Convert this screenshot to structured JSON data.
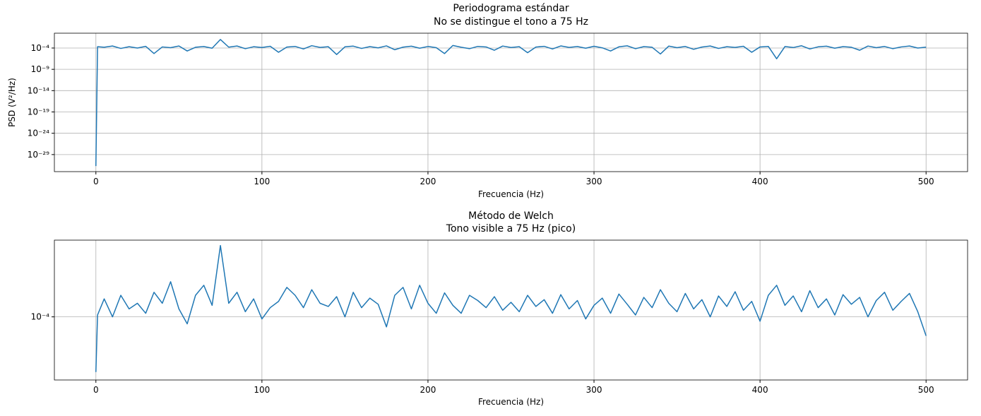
{
  "chart_data": [
    {
      "type": "line",
      "title": "Periodograma estándar",
      "subtitle": "No se distingue el tono a 75 Hz",
      "xlabel": "Frecuencia (Hz)",
      "ylabel": "PSD (V²/Hz)",
      "yscale": "log",
      "grid": true,
      "color": "#1f77b4",
      "xlim": [
        -25,
        525
      ],
      "xticks": [
        0,
        100,
        200,
        300,
        400,
        500
      ],
      "ylim": [
        1e-33,
        0.3
      ],
      "yticks": [
        {
          "value": 0.0001,
          "label": "10⁻⁴"
        },
        {
          "value": 1e-09,
          "label": "10⁻⁹"
        },
        {
          "value": 1e-14,
          "label": "10⁻¹⁴"
        },
        {
          "value": 1e-19,
          "label": "10⁻¹⁹"
        },
        {
          "value": 1e-24,
          "label": "10⁻²⁴"
        },
        {
          "value": 1e-29,
          "label": "10⁻²⁹"
        }
      ],
      "x": [
        0,
        1,
        5,
        10,
        15,
        20,
        25,
        30,
        35,
        40,
        45,
        50,
        55,
        60,
        65,
        70,
        75,
        80,
        85,
        90,
        95,
        100,
        105,
        110,
        115,
        120,
        125,
        130,
        135,
        140,
        145,
        150,
        155,
        160,
        165,
        170,
        175,
        180,
        185,
        190,
        195,
        200,
        205,
        210,
        215,
        220,
        225,
        230,
        235,
        240,
        245,
        250,
        255,
        260,
        265,
        270,
        275,
        280,
        285,
        290,
        295,
        300,
        305,
        310,
        315,
        320,
        325,
        330,
        335,
        340,
        345,
        350,
        355,
        360,
        365,
        370,
        375,
        380,
        385,
        390,
        395,
        400,
        405,
        410,
        415,
        420,
        425,
        430,
        435,
        440,
        445,
        450,
        455,
        460,
        465,
        470,
        475,
        480,
        485,
        490,
        495,
        500
      ],
      "values": [
        2e-32,
        0.0002,
        0.00015,
        0.0003,
        8e-05,
        0.0002,
        0.0001,
        0.00025,
        5e-06,
        0.00018,
        0.00012,
        0.0003,
        2e-05,
        0.00015,
        0.00022,
        9e-05,
        0.01,
        0.00016,
        0.0003,
        7e-05,
        0.0002,
        0.00013,
        0.00026,
        1e-05,
        0.00017,
        0.00024,
        6e-05,
        0.00035,
        0.00014,
        0.0002,
        3e-06,
        0.00019,
        0.00028,
        8e-05,
        0.00021,
        0.00011,
        0.00032,
        4e-05,
        0.00016,
        0.00027,
        9e-05,
        0.00023,
        0.00012,
        5e-06,
        0.0004,
        0.00015,
        7e-05,
        0.00024,
        0.00018,
        3e-05,
        0.00029,
        0.00013,
        0.0002,
        8e-06,
        0.00017,
        0.00025,
        6e-05,
        0.00031,
        0.00014,
        0.00022,
        9e-05,
        0.00026,
        0.00011,
        2e-05,
        0.00019,
        0.00033,
        7e-05,
        0.00021,
        0.00015,
        4e-06,
        0.00028,
        0.00012,
        0.00023,
        5e-05,
        0.00017,
        0.0003,
        8e-05,
        0.0002,
        0.00014,
        0.00026,
        1e-05,
        0.00018,
        0.00024,
        3e-07,
        0.00022,
        0.00013,
        0.00034,
        6e-05,
        0.00019,
        0.00027,
        9e-05,
        0.00021,
        0.00015,
        3e-05,
        0.00029,
        0.00012,
        0.00023,
        7e-05,
        0.00018,
        0.0003,
        0.0001,
        0.00016
      ]
    },
    {
      "type": "line",
      "title": "Método de Welch",
      "subtitle": "Tono visible a 75 Hz (pico)",
      "xlabel": "Frecuencia (Hz)",
      "yscale": "log",
      "grid": true,
      "color": "#1f77b4",
      "xlim": [
        -25,
        525
      ],
      "xticks": [
        0,
        100,
        200,
        300,
        400,
        500
      ],
      "ylim": [
        4e-06,
        0.005
      ],
      "yticks": [
        {
          "value": 0.0001,
          "label": "10⁻⁴"
        }
      ],
      "x": [
        0,
        1,
        5,
        10,
        15,
        20,
        25,
        30,
        35,
        40,
        45,
        50,
        55,
        60,
        65,
        70,
        75,
        80,
        85,
        90,
        95,
        100,
        105,
        110,
        115,
        120,
        125,
        130,
        135,
        140,
        145,
        150,
        155,
        160,
        165,
        170,
        175,
        180,
        185,
        190,
        195,
        200,
        205,
        210,
        215,
        220,
        225,
        230,
        235,
        240,
        245,
        250,
        255,
        260,
        265,
        270,
        275,
        280,
        285,
        290,
        295,
        300,
        305,
        310,
        315,
        320,
        325,
        330,
        335,
        340,
        345,
        350,
        355,
        360,
        365,
        370,
        375,
        380,
        385,
        390,
        395,
        400,
        405,
        410,
        415,
        420,
        425,
        430,
        435,
        440,
        445,
        450,
        455,
        460,
        465,
        470,
        475,
        480,
        485,
        490,
        495,
        500
      ],
      "values": [
        6e-06,
        0.00011,
        0.00025,
        0.0001,
        0.0003,
        0.00015,
        0.0002,
        0.00012,
        0.00035,
        0.0002,
        0.0006,
        0.00015,
        7e-05,
        0.0003,
        0.0005,
        0.00018,
        0.0038,
        0.0002,
        0.00035,
        0.00013,
        0.00025,
        9e-05,
        0.00016,
        0.00022,
        0.00045,
        0.0003,
        0.00016,
        0.0004,
        0.0002,
        0.00017,
        0.00028,
        0.0001,
        0.00035,
        0.00016,
        0.00026,
        0.00019,
        6e-05,
        0.0003,
        0.00045,
        0.00015,
        0.0005,
        0.0002,
        0.00012,
        0.00034,
        0.00018,
        0.00012,
        0.0003,
        0.00023,
        0.00016,
        0.00028,
        0.00014,
        0.00021,
        0.00013,
        0.0003,
        0.00017,
        0.00024,
        0.00012,
        0.00031,
        0.00015,
        0.00023,
        9e-05,
        0.00018,
        0.00026,
        0.00012,
        0.00032,
        0.00019,
        0.00011,
        0.00027,
        0.00016,
        0.0004,
        0.0002,
        0.00013,
        0.00033,
        0.00015,
        0.00024,
        0.0001,
        0.00029,
        0.00017,
        0.00036,
        0.00014,
        0.00022,
        8e-05,
        0.0003,
        0.0005,
        0.00018,
        0.00029,
        0.00013,
        0.00038,
        0.00016,
        0.00025,
        0.00011,
        0.00031,
        0.00019,
        0.00027,
        0.0001,
        0.00023,
        0.00035,
        0.00014,
        0.00022,
        0.00033,
        0.00013,
        3.8e-05
      ]
    }
  ]
}
